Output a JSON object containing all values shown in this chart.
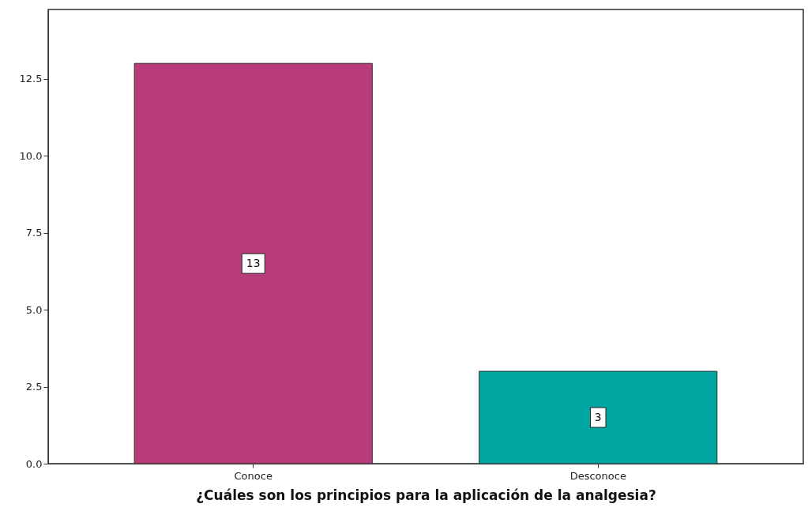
{
  "chart_data": {
    "type": "bar",
    "xlabel": "¿Cuáles son los principios para la aplicación de la analgesia?",
    "categories": [
      "Conoce",
      "Desconoce"
    ],
    "values": [
      13,
      3
    ],
    "colors": [
      "#b83c7a",
      "#00a6a1"
    ],
    "ylim": [
      0,
      14.75
    ],
    "yticks": [
      {
        "value": 0,
        "label": "0.0"
      },
      2.5,
      {
        "value": 5,
        "label": "5.0"
      },
      7.5,
      {
        "value": 10,
        "label": "10.0"
      },
      12.5
    ],
    "data_labels": true
  }
}
